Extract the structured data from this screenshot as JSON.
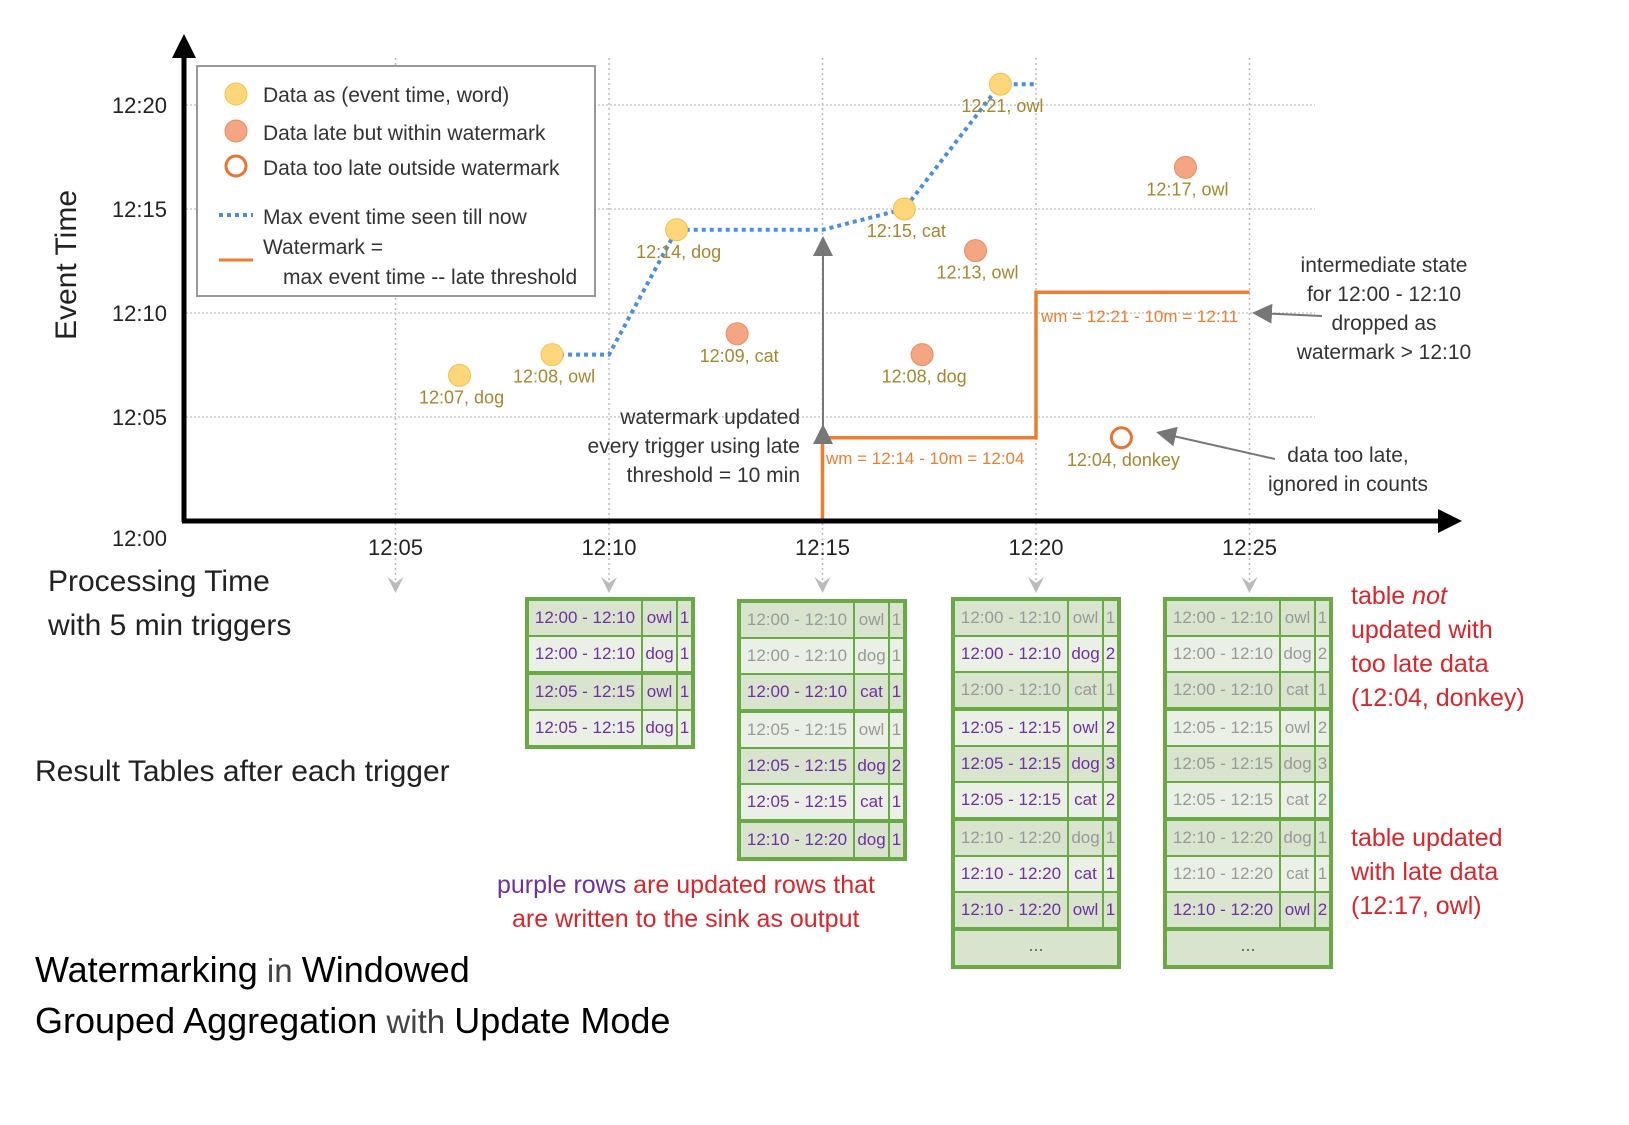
{
  "axes": {
    "y_label": "Event Time",
    "y_ticks": [
      "12:00",
      "12:05",
      "12:10",
      "12:15",
      "12:20"
    ],
    "x_ticks": [
      "12:05",
      "12:10",
      "12:15",
      "12:20",
      "12:25"
    ],
    "x_label_line1": "Processing Time",
    "x_label_line2": "with 5 min triggers"
  },
  "legend": {
    "on_time": "Data as (event time, word)",
    "late": "Data late but within watermark",
    "too_late": "Data too late outside watermark",
    "max_line": "Max event time seen till now",
    "wm_line1": "Watermark =",
    "wm_line2": "max event time -- late threshold"
  },
  "colors": {
    "on_time": "#fdd77a",
    "late": "#f4a582",
    "too_late": "#e8742f",
    "max_line": "#4a90d9",
    "watermark": "#ed7d31",
    "purple": "#7030a0",
    "red": "#d9262c",
    "table_green": "#6aaa46"
  },
  "chart_data": {
    "type": "scatter",
    "points": [
      {
        "proc": "12:06:30",
        "event": "12:07",
        "word": "dog",
        "kind": "on_time",
        "label": "12:07, dog"
      },
      {
        "proc": "12:08:40",
        "event": "12:08",
        "word": "owl",
        "kind": "on_time",
        "label": "12:08, owl"
      },
      {
        "proc": "12:11:35",
        "event": "12:14",
        "word": "dog",
        "kind": "on_time",
        "label": "12:14, dog"
      },
      {
        "proc": "12:13:00",
        "event": "12:09",
        "word": "cat",
        "kind": "late",
        "label": "12:09, cat"
      },
      {
        "proc": "12:16:55",
        "event": "12:15",
        "word": "cat",
        "kind": "on_time",
        "label": "12:15, cat"
      },
      {
        "proc": "12:17:20",
        "event": "12:08",
        "word": "dog",
        "kind": "late",
        "label": "12:08, dog"
      },
      {
        "proc": "12:18:35",
        "event": "12:13",
        "word": "owl",
        "kind": "late",
        "label": "12:13, owl"
      },
      {
        "proc": "12:19:10",
        "event": "12:21",
        "word": "owl",
        "kind": "on_time",
        "label": "12:21, owl"
      },
      {
        "proc": "12:22:00",
        "event": "12:04",
        "word": "donkey",
        "kind": "too_late",
        "label": "12:04, donkey"
      },
      {
        "proc": "12:23:30",
        "event": "12:17",
        "word": "owl",
        "kind": "late",
        "label": "12:17, owl"
      }
    ],
    "max_event_time": [
      [
        "12:08:40",
        "12:08"
      ],
      [
        "12:10:00",
        "12:08"
      ],
      [
        "12:11:35",
        "12:14"
      ],
      [
        "12:15:00",
        "12:14"
      ],
      [
        "12:16:55",
        "12:15"
      ],
      [
        "12:19:10",
        "12:21"
      ],
      [
        "12:20:00",
        "12:21"
      ]
    ],
    "watermark": [
      [
        "12:15:00",
        "12:00"
      ],
      [
        "12:15:00",
        "12:04"
      ],
      [
        "12:20:00",
        "12:04"
      ],
      [
        "12:20:00",
        "12:11"
      ],
      [
        "12:25:00",
        "12:11"
      ]
    ],
    "wm_labels": [
      "wm = 12:14 - 10m = 12:04",
      "wm = 12:21 - 10m = 12:11"
    ]
  },
  "annotations": {
    "wm_updated": [
      "watermark updated",
      "every trigger using late",
      "threshold = 10 min"
    ],
    "intermediate": [
      "intermediate state",
      "for 12:00 - 12:10",
      "dropped as",
      "watermark > 12:10"
    ],
    "too_late": [
      "data too late,",
      "ignored in counts"
    ],
    "result_tables": "Result Tables after each trigger",
    "purple_rows_a": "purple rows",
    "purple_rows_b": " are updated rows that",
    "purple_rows_c": "are written to the sink as output",
    "not_updated": [
      "table ",
      "not",
      " updated with",
      "too late data",
      "(12:04, donkey)"
    ],
    "updated_late": [
      "table updated",
      "with late data",
      "(12:17, owl)"
    ]
  },
  "title": {
    "l1": [
      [
        "Watermarking",
        1
      ],
      [
        " in ",
        0
      ],
      [
        "Windowed",
        1
      ]
    ],
    "l2": [
      [
        "Grouped Aggregation",
        1
      ],
      [
        " with ",
        0
      ],
      [
        "Update Mode",
        1
      ]
    ]
  },
  "tables": [
    {
      "rows": [
        [
          "12:00 - 12:10",
          "owl",
          "1",
          1
        ],
        [
          "12:00 - 12:10",
          "dog",
          "1",
          1
        ],
        [
          "12:05 - 12:15",
          "owl",
          "1",
          1
        ],
        [
          "12:05 - 12:15",
          "dog",
          "1",
          1
        ]
      ],
      "more": ""
    },
    {
      "rows": [
        [
          "12:00 - 12:10",
          "owl",
          "1",
          0
        ],
        [
          "12:00 - 12:10",
          "dog",
          "1",
          0
        ],
        [
          "12:00 - 12:10",
          "cat",
          "1",
          1
        ],
        [
          "12:05 - 12:15",
          "owl",
          "1",
          0
        ],
        [
          "12:05 - 12:15",
          "dog",
          "2",
          1
        ],
        [
          "12:05 - 12:15",
          "cat",
          "1",
          1
        ],
        [
          "12:10 - 12:20",
          "dog",
          "1",
          1
        ]
      ],
      "more": ""
    },
    {
      "rows": [
        [
          "12:00 - 12:10",
          "owl",
          "1",
          0
        ],
        [
          "12:00 - 12:10",
          "dog",
          "2",
          1
        ],
        [
          "12:00 - 12:10",
          "cat",
          "1",
          0
        ],
        [
          "12:05 - 12:15",
          "owl",
          "2",
          1
        ],
        [
          "12:05 - 12:15",
          "dog",
          "3",
          1
        ],
        [
          "12:05 - 12:15",
          "cat",
          "2",
          1
        ],
        [
          "12:10 - 12:20",
          "dog",
          "1",
          0
        ],
        [
          "12:10 - 12:20",
          "cat",
          "1",
          1
        ],
        [
          "12:10 - 12:20",
          "owl",
          "1",
          1
        ]
      ],
      "more": "..."
    },
    {
      "rows": [
        [
          "12:00 - 12:10",
          "owl",
          "1",
          0
        ],
        [
          "12:00 - 12:10",
          "dog",
          "2",
          0
        ],
        [
          "12:00 - 12:10",
          "cat",
          "1",
          0
        ],
        [
          "12:05 - 12:15",
          "owl",
          "2",
          0
        ],
        [
          "12:05 - 12:15",
          "dog",
          "3",
          0
        ],
        [
          "12:05 - 12:15",
          "cat",
          "2",
          0
        ],
        [
          "12:10 - 12:20",
          "dog",
          "1",
          0
        ],
        [
          "12:10 - 12:20",
          "cat",
          "1",
          0
        ],
        [
          "12:10 - 12:20",
          "owl",
          "2",
          1
        ]
      ],
      "more": "..."
    }
  ]
}
